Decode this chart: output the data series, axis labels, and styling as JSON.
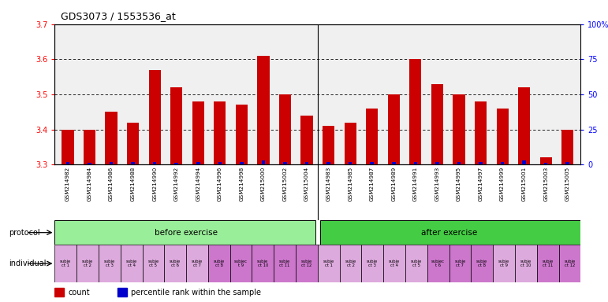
{
  "title": "GDS3073 / 1553536_at",
  "bar_labels": [
    "GSM214982",
    "GSM214984",
    "GSM214986",
    "GSM214988",
    "GSM214990",
    "GSM214992",
    "GSM214994",
    "GSM214996",
    "GSM214998",
    "GSM215000",
    "GSM215002",
    "GSM215004",
    "GSM214983",
    "GSM214985",
    "GSM214987",
    "GSM214989",
    "GSM214991",
    "GSM214993",
    "GSM214995",
    "GSM214997",
    "GSM214999",
    "GSM215001",
    "GSM215003",
    "GSM215005"
  ],
  "bar_values": [
    3.4,
    3.4,
    3.45,
    3.42,
    3.57,
    3.52,
    3.48,
    3.48,
    3.47,
    3.61,
    3.5,
    3.44,
    3.41,
    3.42,
    3.46,
    3.5,
    3.6,
    3.53,
    3.5,
    3.48,
    3.46,
    3.52,
    3.32,
    3.4
  ],
  "percentile_values": [
    2,
    1,
    2,
    2,
    2,
    1,
    2,
    2,
    2,
    3,
    2,
    2,
    2,
    2,
    2,
    2,
    2,
    2,
    2,
    2,
    2,
    3,
    1,
    2
  ],
  "ylim_left": [
    3.3,
    3.7
  ],
  "ylim_right": [
    0,
    100
  ],
  "yticks_left": [
    3.3,
    3.4,
    3.5,
    3.6,
    3.7
  ],
  "yticks_right": [
    0,
    25,
    50,
    75,
    100
  ],
  "ytick_right_labels": [
    "0",
    "25",
    "50",
    "75",
    "100%"
  ],
  "bar_color": "#cc0000",
  "percentile_color": "#0000cc",
  "background_color": "#ffffff",
  "bar_bg_color": "#f0f0f0",
  "xlabel_bg_color": "#cccccc",
  "protocol_before": "before exercise",
  "protocol_after": "after exercise",
  "before_color": "#99ee99",
  "after_color": "#44cc44",
  "indiv_colors_before": [
    "#ddaadd",
    "#ddaadd",
    "#ddaadd",
    "#ddaadd",
    "#ddaadd",
    "#ddaadd",
    "#ddaadd",
    "#cc77cc",
    "#cc77cc",
    "#cc77cc",
    "#cc77cc",
    "#cc77cc"
  ],
  "indiv_colors_after": [
    "#ddaadd",
    "#ddaadd",
    "#ddaadd",
    "#ddaadd",
    "#ddaadd",
    "#cc77cc",
    "#cc77cc",
    "#cc77cc",
    "#ddaadd",
    "#ddaadd",
    "#cc77cc",
    "#cc77cc"
  ],
  "indiv_labels_before": [
    "subje\nct 1",
    "subje\nct 2",
    "subje\nct 3",
    "subje\nct 4",
    "subje\nct 5",
    "subje\nct 6",
    "subje\nct 7",
    "subje\nct 8",
    "subjec\nt 9",
    "subje\nct 10",
    "subje\nct 11",
    "subje\nct 12"
  ],
  "indiv_labels_after": [
    "subje\nct 1",
    "subje\nct 2",
    "subje\nct 3",
    "subje\nct 4",
    "subje\nct 5",
    "subjec\nt 6",
    "subje\nct 7",
    "subje\nct 8",
    "subje\nct 9",
    "subje\nct 10",
    "subje\nct 11",
    "subje\nct 12"
  ],
  "legend_count_color": "#cc0000",
  "legend_percentile_color": "#0000cc",
  "bar_width": 0.55,
  "n_bars": 24,
  "n_before": 12,
  "n_after": 12
}
